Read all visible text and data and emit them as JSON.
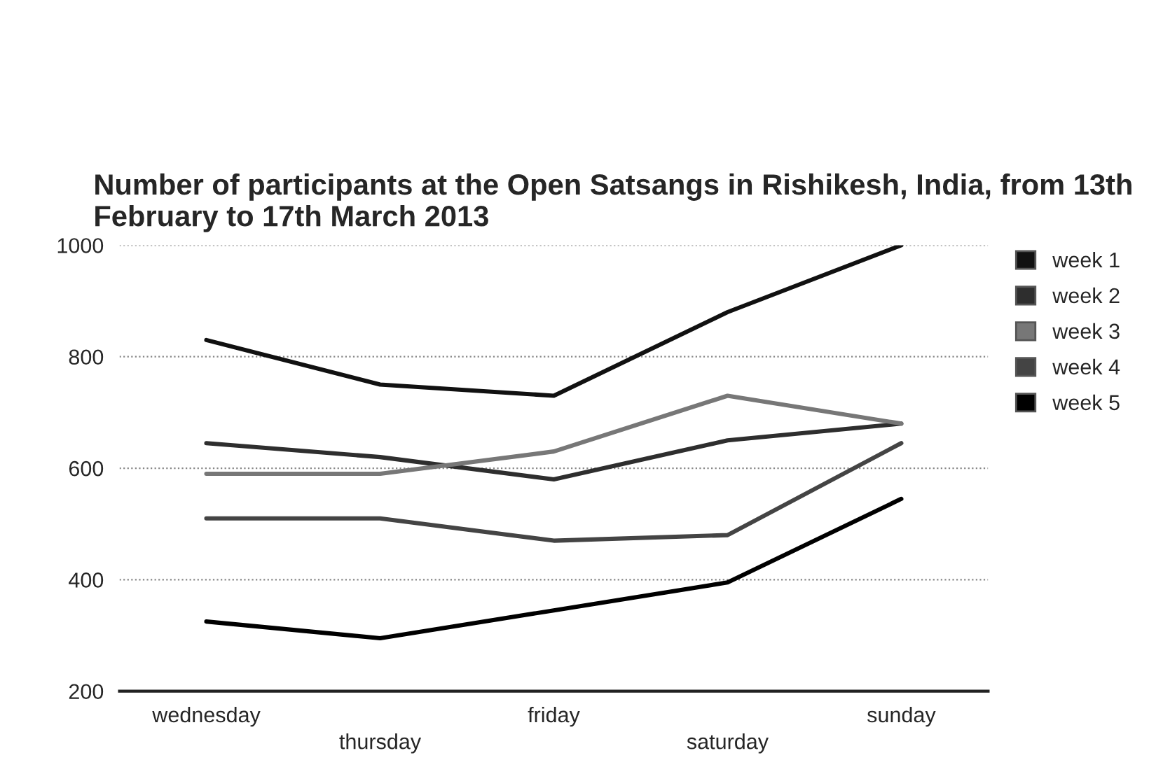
{
  "chart_data": {
    "type": "line",
    "title": "Number of participants at the Open Satsangs in Rishikesh, India, from 13th February to 17th March 2013",
    "categories": [
      "wednesday",
      "thursday",
      "friday",
      "saturday",
      "sunday"
    ],
    "series": [
      {
        "name": "week 1",
        "color": "#111111",
        "values": [
          830,
          750,
          730,
          880,
          1000
        ]
      },
      {
        "name": "week 2",
        "color": "#2e2e2e",
        "values": [
          645,
          620,
          580,
          650,
          680
        ]
      },
      {
        "name": "week 3",
        "color": "#777777",
        "values": [
          590,
          590,
          630,
          730,
          680
        ]
      },
      {
        "name": "week 4",
        "color": "#444444",
        "values": [
          510,
          510,
          470,
          480,
          645
        ]
      },
      {
        "name": "week 5",
        "color": "#000000",
        "values": [
          325,
          295,
          345,
          395,
          545
        ]
      }
    ],
    "ylim": [
      200,
      1000
    ],
    "yticks": [
      200,
      400,
      600,
      800,
      1000
    ],
    "grid": "y",
    "legend": "top right",
    "marker": "none",
    "line_style": "solid"
  }
}
